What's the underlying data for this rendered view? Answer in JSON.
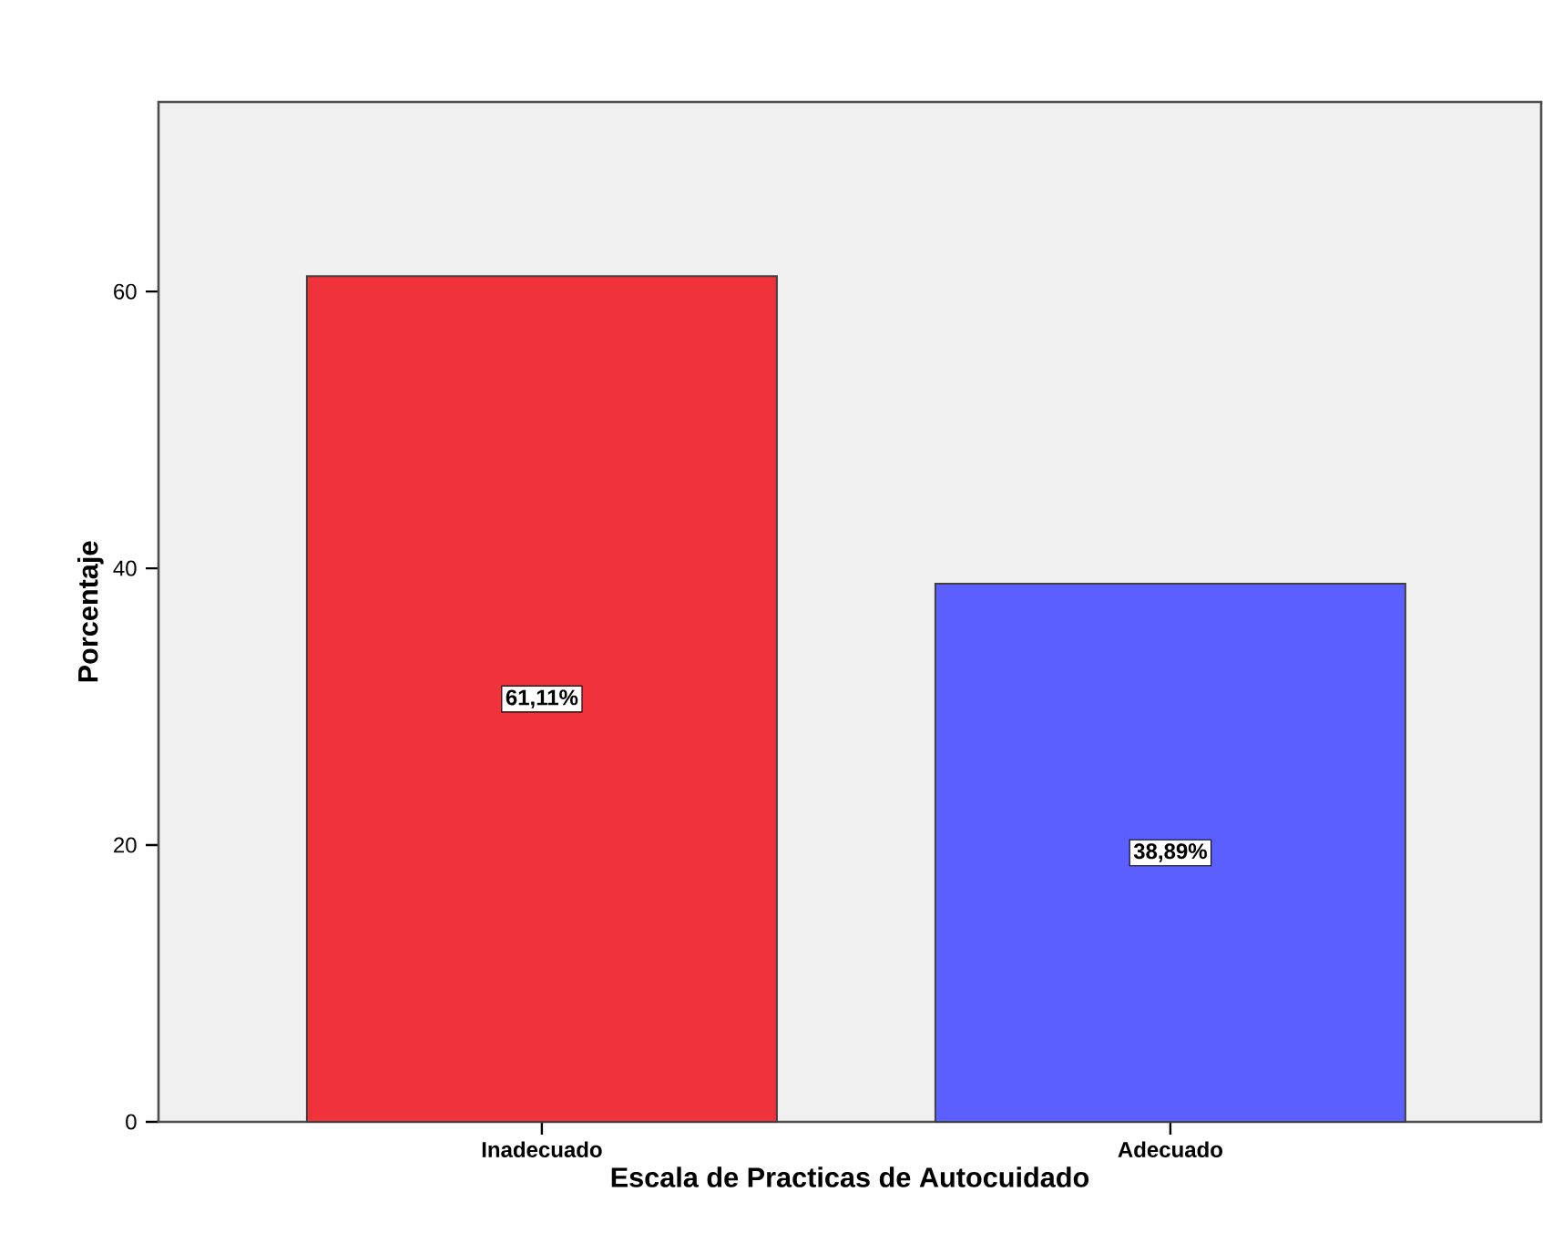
{
  "chart_data": {
    "type": "bar",
    "xlabel": "Escala de Practicas de Autocuidado",
    "ylabel": "Porcentaje",
    "categories": [
      "Inadecuado",
      "Adecuado"
    ],
    "values": [
      61.11,
      38.89
    ],
    "colors": [
      "#f0323a",
      "#5b5fff"
    ],
    "value_labels": [
      "61,11%",
      "38,89%"
    ],
    "ylim": [
      0,
      73.7
    ],
    "yticks": [
      0,
      20,
      40,
      60
    ],
    "grid": false
  }
}
